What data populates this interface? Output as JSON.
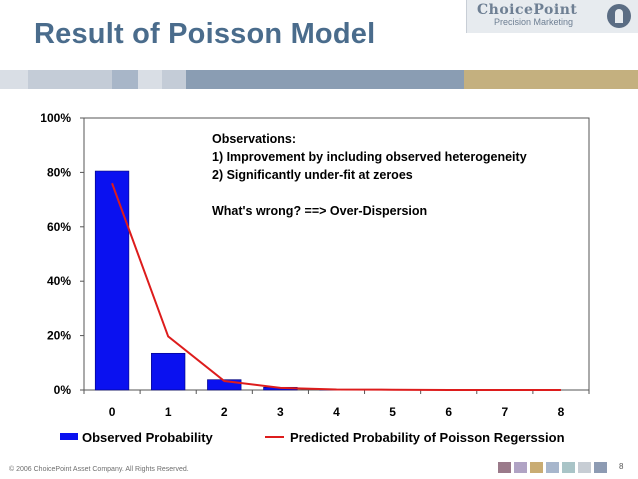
{
  "slide": {
    "title": "Result of Poisson Model",
    "footer": "© 2006 ChoicePoint Asset Company. All Rights Reserved.",
    "page_number": "8"
  },
  "logo": {
    "name": "ChoicePoint",
    "subtitle": "Precision Marketing",
    "icon": "choicepoint-logo-mark"
  },
  "colors": {
    "title": "#4a6c8c",
    "bar": "#0a11f0",
    "line": "#dd1c1c",
    "footer_squares": [
      "#9a7a8a",
      "#b0a3c4",
      "#c9ac73",
      "#a7b6cc",
      "#a9c4c7",
      "#c7cdd4",
      "#8d9bb3"
    ]
  },
  "chart_data": {
    "type": "bar",
    "categories": [
      "0",
      "1",
      "2",
      "3",
      "4",
      "5",
      "6",
      "7",
      "8"
    ],
    "series": [
      {
        "name": "Observed Probability",
        "type": "bar",
        "values": [
          0.805,
          0.135,
          0.038,
          0.01,
          0.002,
          0.001,
          0.0,
          0.0,
          0.0
        ]
      },
      {
        "name": "Predicted Probability of Poisson Regerssion",
        "type": "line",
        "values": [
          0.76,
          0.197,
          0.033,
          0.008,
          0.002,
          0.001,
          0.0,
          0.0,
          0.0
        ]
      }
    ],
    "y_ticks": [
      "0%",
      "20%",
      "40%",
      "60%",
      "80%",
      "100%"
    ],
    "ylim": [
      0,
      1
    ],
    "legend_position": "bottom",
    "annotation": [
      "Observations:",
      "1) Improvement by including observed heterogeneity",
      "2) Significantly under-fit at zeroes",
      "",
      "What's wrong? ==> Over-Dispersion"
    ]
  }
}
